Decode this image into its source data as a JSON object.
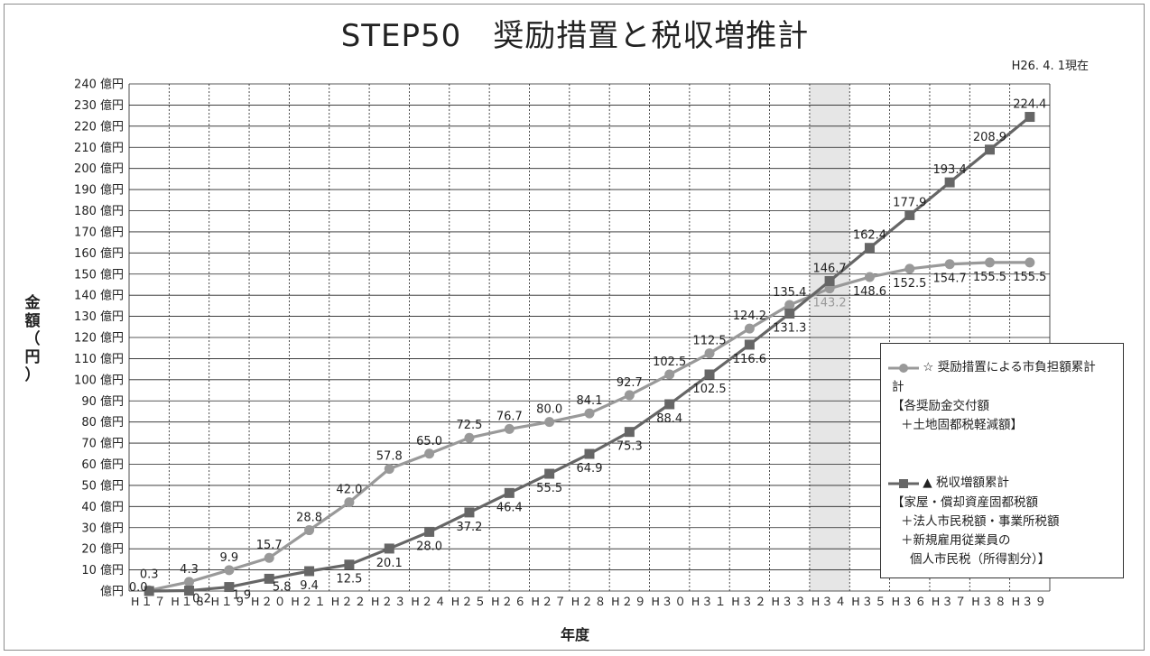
{
  "title": "STEP50　奨励措置と税収増推計",
  "date_note": "H26. 4. 1現在",
  "colors": {
    "series1": "#999999",
    "series2": "#666666",
    "highlight": "#e6e6e6"
  },
  "chart_data": {
    "type": "line",
    "title": "STEP50　奨励措置と税収増推計",
    "xlabel": "年度",
    "ylabel": "金額（円）",
    "ylim": [
      0,
      240
    ],
    "ytick_step": 10,
    "ytick_labels": [
      "億円",
      "10 億円",
      "20 億円",
      "30 億円",
      "40 億円",
      "50 億円",
      "60 億円",
      "70 億円",
      "80 億円",
      "90 億円",
      "100 億円",
      "110 億円",
      "120 億円",
      "130 億円",
      "140 億円",
      "150 億円",
      "160 億円",
      "170 億円",
      "180 億円",
      "190 億円",
      "200 億円",
      "210 億円",
      "220 億円",
      "230 億円",
      "240 億円"
    ],
    "categories": [
      "H17",
      "H18",
      "H19",
      "H20",
      "H21",
      "H22",
      "H23",
      "H24",
      "H25",
      "H26",
      "H27",
      "H28",
      "H29",
      "H30",
      "H31",
      "H32",
      "H33",
      "H34",
      "H35",
      "H36",
      "H37",
      "H38",
      "H39"
    ],
    "category_labels": [
      "H１７",
      "H１８",
      "H１９",
      "H２０",
      "H２１",
      "H２２",
      "H２３",
      "H２４",
      "H２５",
      "H２６",
      "H２７",
      "H２８",
      "H２９",
      "H３０",
      "H３１",
      "H３２",
      "H３３",
      "H３４",
      "H３５",
      "H３６",
      "H３７",
      "H３８",
      "H３９"
    ],
    "highlight_category": "H34",
    "grid": true,
    "legend_position": "right",
    "series": [
      {
        "name": "☆ 奨励措置による市負担額累計",
        "note_lines": [
          "計",
          "【各奨励金交付額",
          "＋土地固都税軽減額】"
        ],
        "marker": "circle",
        "values": [
          0.3,
          4.3,
          9.9,
          15.7,
          28.8,
          42.0,
          57.8,
          65.0,
          72.5,
          76.7,
          80.0,
          84.1,
          92.7,
          102.5,
          112.5,
          124.2,
          135.4,
          143.2,
          148.6,
          152.5,
          154.7,
          155.5,
          155.5
        ],
        "labels": [
          "0.3",
          "4.3",
          "9.9",
          "15.7",
          "28.8",
          "42.0",
          "57.8",
          "65.0",
          "72.5",
          "76.7",
          "80.0",
          "84.1",
          "92.7",
          "102.5",
          "112.5",
          "124.2",
          "135.4",
          "143.2",
          "148.6",
          "152.5",
          "154.7",
          "155.5",
          "155.5"
        ]
      },
      {
        "name": "▲ 税収増額累計",
        "note_lines": [
          "【家屋・償却資産固都税額",
          "＋法人市民税額・事業所税額",
          "＋新規雇用従業員の",
          "個人市民税（所得割分）】"
        ],
        "marker": "square",
        "values": [
          0.0,
          0.2,
          1.9,
          5.8,
          9.4,
          12.5,
          20.1,
          28.0,
          37.2,
          46.4,
          55.5,
          64.9,
          75.3,
          88.4,
          102.5,
          116.6,
          131.3,
          146.7,
          162.4,
          177.9,
          193.4,
          208.9,
          224.4
        ],
        "labels": [
          "0.0",
          "0.2",
          "1.9",
          "5.8",
          "9.4",
          "12.5",
          "20.1",
          "28.0",
          "37.2",
          "46.4",
          "55.5",
          "64.9",
          "75.3",
          "88.4",
          "102.5",
          "116.6",
          "131.3",
          "146.7",
          "162.4",
          "177.9",
          "193.4",
          "208.9",
          "224.4"
        ]
      }
    ]
  }
}
